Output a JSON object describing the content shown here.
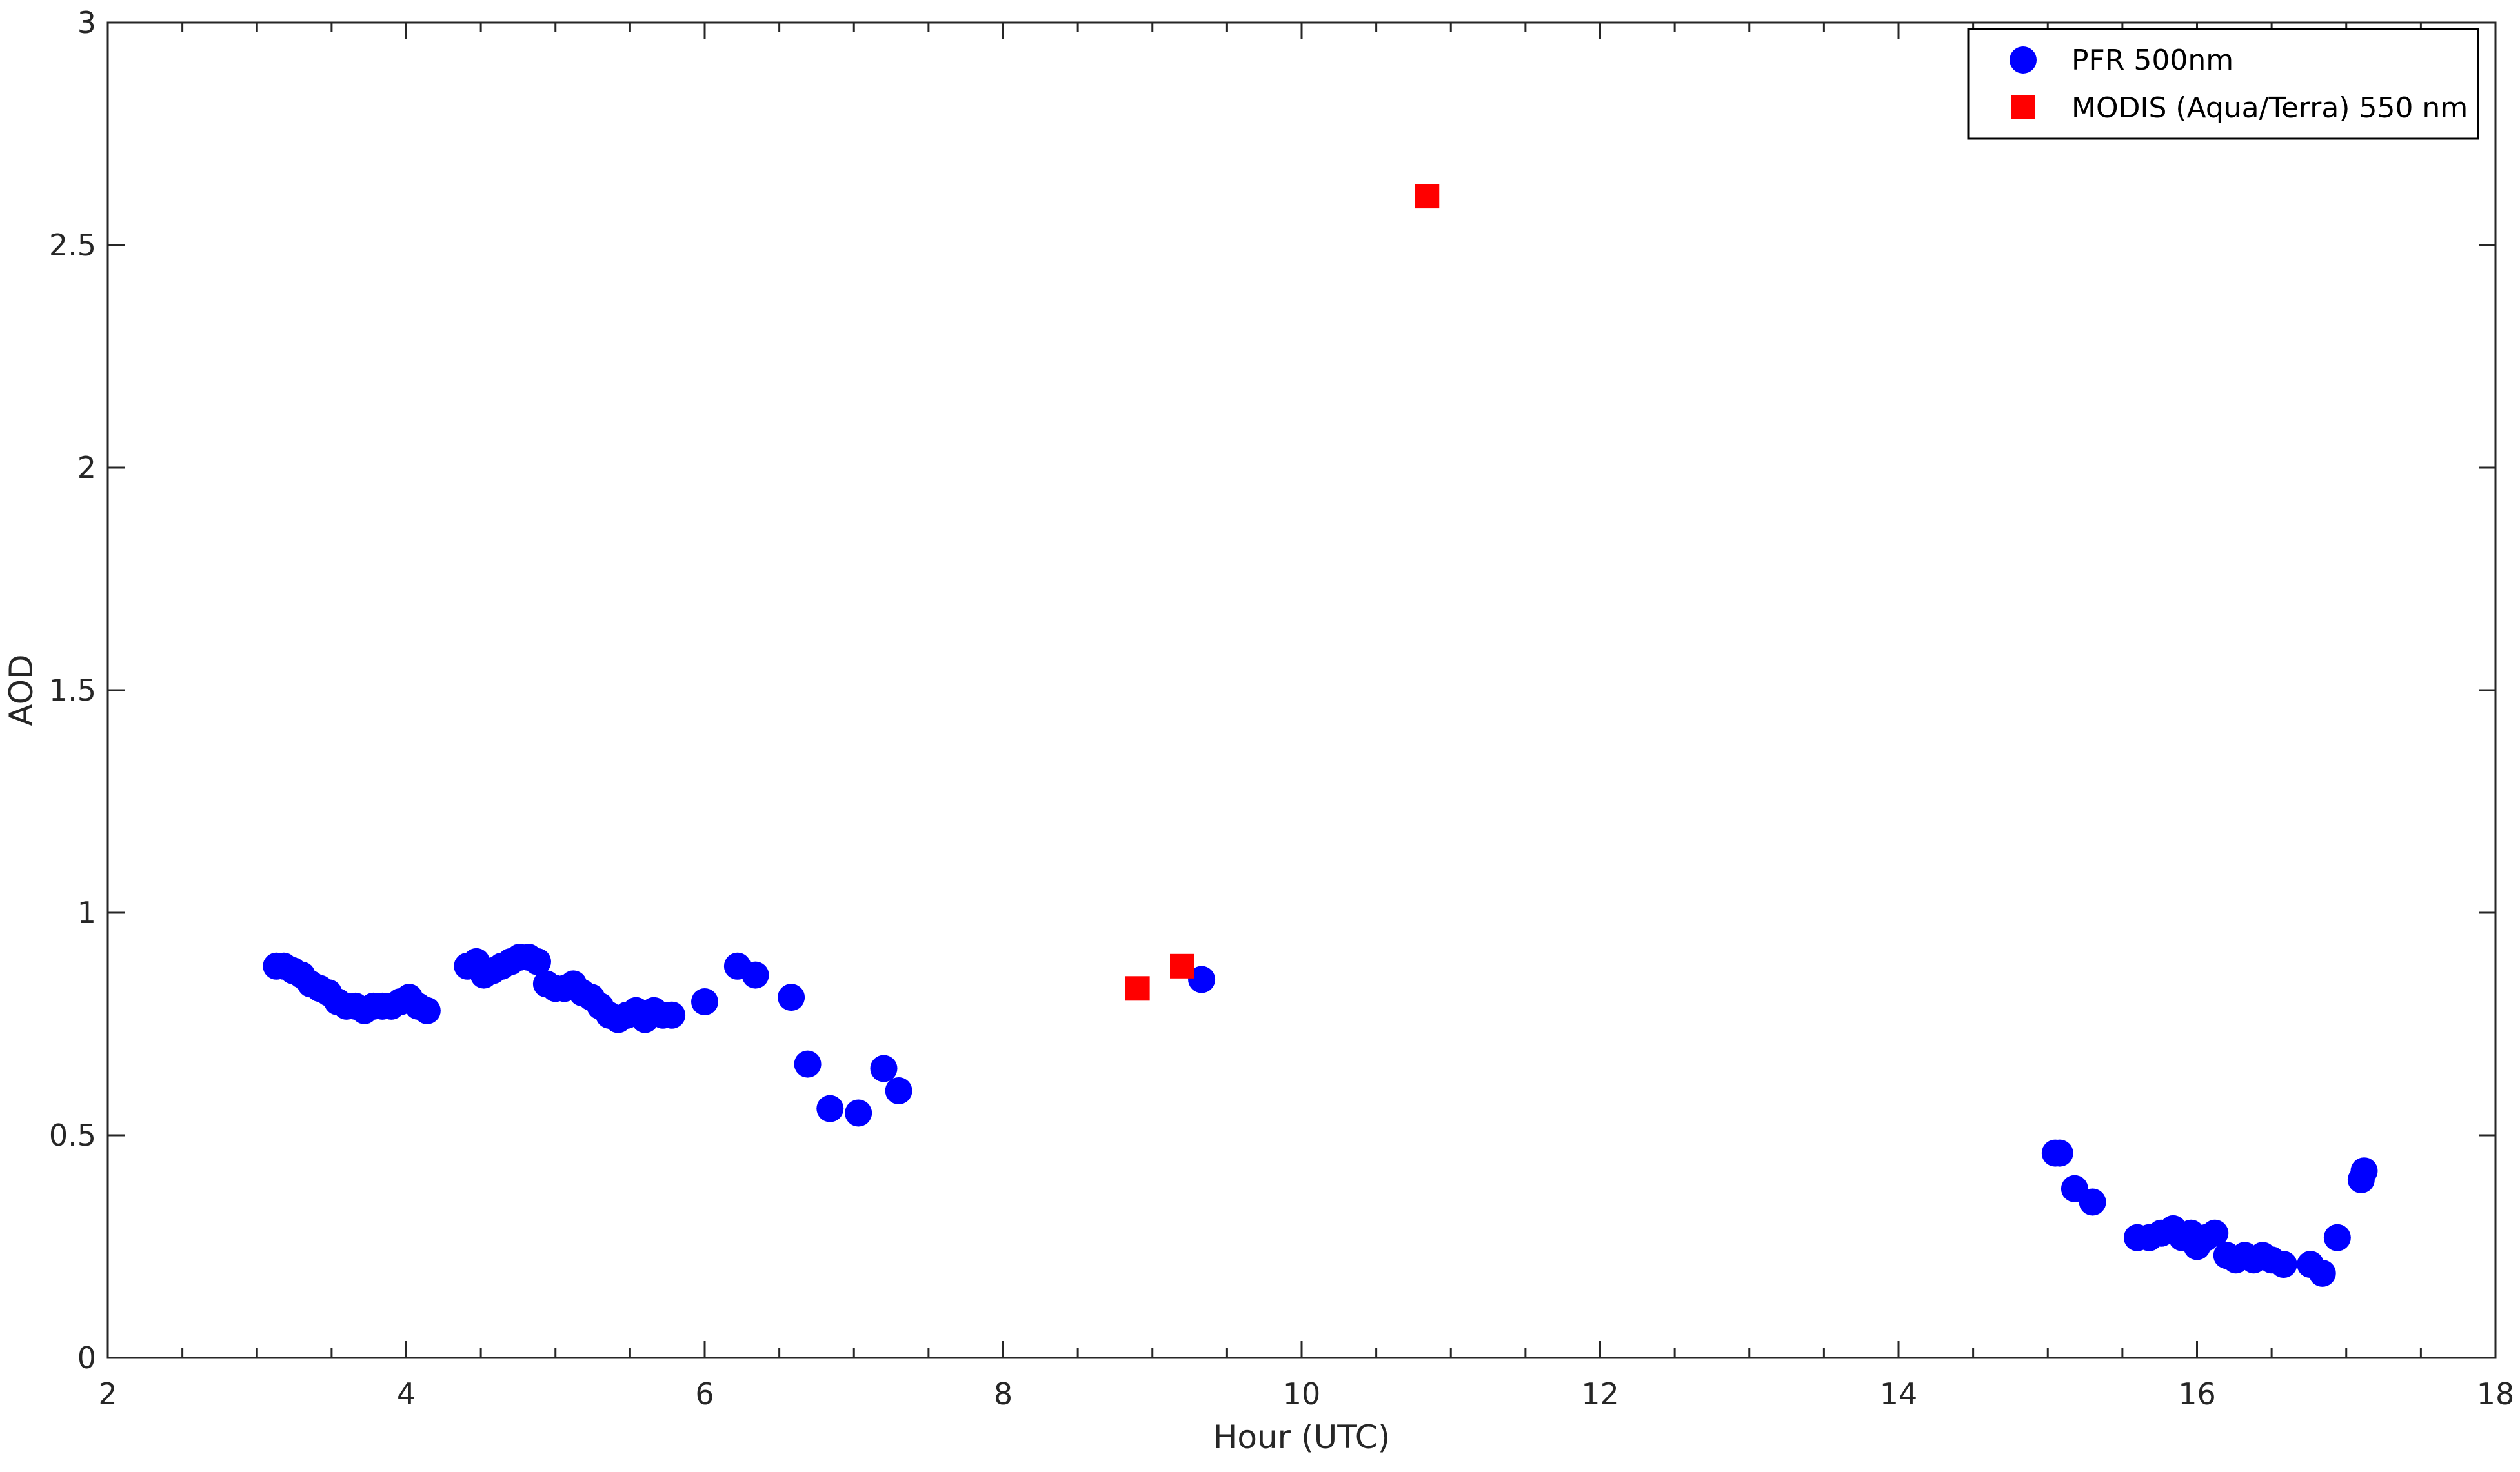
{
  "chart_data": {
    "type": "scatter",
    "title": "",
    "xlabel": "Hour (UTC)",
    "ylabel": "AOD",
    "xlim": [
      2,
      18
    ],
    "ylim": [
      0,
      3
    ],
    "xticks": [
      2,
      4,
      6,
      8,
      10,
      12,
      14,
      16,
      18
    ],
    "yticks": [
      0,
      0.5,
      1,
      1.5,
      2,
      2.5,
      3
    ],
    "xtick_labels": [
      "2",
      "4",
      "6",
      "8",
      "10",
      "12",
      "14",
      "16",
      "18"
    ],
    "ytick_labels": [
      "0",
      "0.5",
      "1",
      "1.5",
      "2",
      "2.5",
      "3"
    ],
    "grid": false,
    "legend_position": "top-right",
    "series": [
      {
        "name": "PFR 500nm",
        "marker": "circle",
        "color": "#0000ff",
        "x": [
          3.13,
          3.18,
          3.24,
          3.3,
          3.36,
          3.42,
          3.48,
          3.54,
          3.6,
          3.66,
          3.72,
          3.78,
          3.84,
          3.9,
          3.96,
          4.02,
          4.08,
          4.14,
          4.41,
          4.47,
          4.52,
          4.58,
          4.64,
          4.7,
          4.76,
          4.82,
          4.88,
          4.94,
          5.0,
          5.06,
          5.12,
          5.18,
          5.24,
          5.3,
          5.36,
          5.42,
          5.48,
          5.54,
          5.6,
          5.66,
          5.72,
          5.78,
          6.0,
          6.22,
          6.34,
          6.58,
          6.69,
          6.84,
          7.03,
          7.2,
          7.3,
          9.33,
          15.05,
          15.08,
          15.18,
          15.3,
          15.6,
          15.68,
          15.76,
          15.84,
          15.9,
          15.96,
          16.0,
          16.06,
          16.12,
          16.2,
          16.26,
          16.32,
          16.38,
          16.44,
          16.5,
          16.58,
          16.76,
          16.84,
          16.94,
          17.1,
          17.12
        ],
        "y": [
          0.88,
          0.88,
          0.87,
          0.86,
          0.84,
          0.83,
          0.82,
          0.8,
          0.79,
          0.79,
          0.78,
          0.79,
          0.79,
          0.79,
          0.8,
          0.81,
          0.79,
          0.78,
          0.88,
          0.89,
          0.86,
          0.87,
          0.88,
          0.89,
          0.9,
          0.9,
          0.89,
          0.84,
          0.83,
          0.83,
          0.84,
          0.82,
          0.81,
          0.79,
          0.77,
          0.76,
          0.77,
          0.78,
          0.76,
          0.78,
          0.77,
          0.77,
          0.8,
          0.88,
          0.86,
          0.81,
          0.66,
          0.56,
          0.55,
          0.65,
          0.6,
          0.85,
          0.46,
          0.46,
          0.38,
          0.35,
          0.27,
          0.27,
          0.28,
          0.29,
          0.27,
          0.28,
          0.25,
          0.27,
          0.28,
          0.23,
          0.22,
          0.23,
          0.22,
          0.23,
          0.22,
          0.21,
          0.21,
          0.19,
          0.27,
          0.4,
          0.42
        ]
      },
      {
        "name": "MODIS (Aqua/Terra) 550 nm",
        "marker": "square",
        "color": "#ff0000",
        "x": [
          8.9,
          9.2,
          10.84
        ],
        "y": [
          0.83,
          0.88,
          2.61
        ]
      }
    ]
  }
}
